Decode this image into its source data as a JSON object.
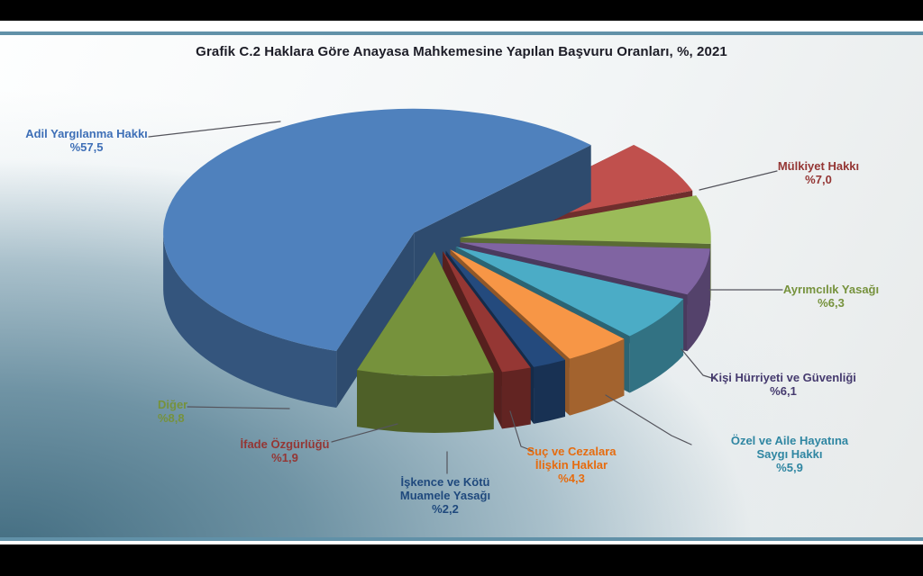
{
  "theme": {
    "frame_color": "#000000",
    "rule_color": "#6191a8",
    "leader_line_color": "#54545c",
    "title_color": "#1d1d27",
    "panel_dark_corner": "#436d81",
    "panel_light": "#fdfefe"
  },
  "chart_data": {
    "type": "pie",
    "style": "3d-exploded",
    "title": "Grafik C.2 Haklara Göre Anayasa Mahkemesine Yapılan Başvuru Oranları, %, 2021",
    "unit": "%",
    "year": "2021",
    "legend": "none",
    "labels_placement": "outside-with-leader-lines",
    "slices": [
      {
        "label": "Adil Yargılanma Hakkı",
        "label_lines": [
          "Adil Yargılanma Hakkı"
        ],
        "value": 57.5,
        "display": "%57,5",
        "color": "#4f81bd",
        "label_color": "#3e6fb7"
      },
      {
        "label": "Mülkiyet Hakkı",
        "label_lines": [
          "Mülkiyet Hakkı"
        ],
        "value": 7.0,
        "display": "%7,0",
        "color": "#c0504d",
        "label_color": "#943634"
      },
      {
        "label": "Ayrımcılık Yasağı",
        "label_lines": [
          "Ayrımcılık Yasağı"
        ],
        "value": 6.3,
        "display": "%6,3",
        "color": "#9bbb59",
        "label_color": "#76923c"
      },
      {
        "label": "Kişi Hürriyeti ve Güvenliği",
        "label_lines": [
          "Kişi Hürriyeti ve Güvenliği"
        ],
        "value": 6.1,
        "display": "%6,1",
        "color": "#8064a2",
        "label_color": "#453a6e"
      },
      {
        "label": "Özel ve Aile Hayatına Saygı Hakkı",
        "label_lines": [
          "Özel ve Aile Hayatına",
          "Saygı Hakkı"
        ],
        "value": 5.9,
        "display": "%5,9",
        "color": "#4bacc6",
        "label_color": "#2f86a2"
      },
      {
        "label": "Suç ve Cezalara İlişkin Haklar",
        "label_lines": [
          "Suç ve Cezalara",
          "İlişkin Haklar"
        ],
        "value": 4.3,
        "display": "%4,3",
        "color": "#f79646",
        "label_color": "#e66c0f"
      },
      {
        "label": "İşkence ve Kötü Muamele Yasağı",
        "label_lines": [
          "İşkence ve Kötü",
          "Muamele Yasağı"
        ],
        "value": 2.2,
        "display": "%2,2",
        "color": "#244a7d",
        "label_color": "#1f497d"
      },
      {
        "label": "İfade Özgürlüğü",
        "label_lines": [
          "İfade Özgürlüğü"
        ],
        "value": 1.9,
        "display": "%1,9",
        "color": "#953734",
        "label_color": "#943634"
      },
      {
        "label": "Diğer",
        "label_lines": [
          "Diğer"
        ],
        "value": 8.8,
        "display": "%8,8",
        "color": "#76923c",
        "label_color": "#76923c"
      }
    ]
  }
}
